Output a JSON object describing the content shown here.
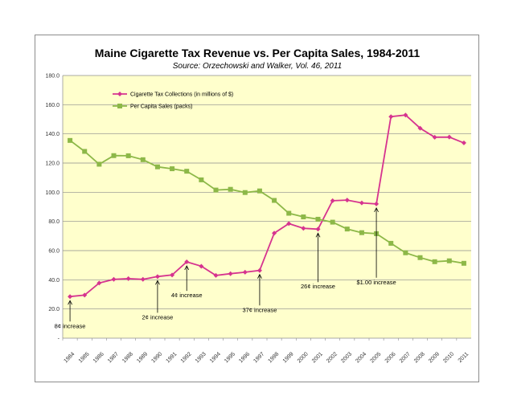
{
  "chart_data": {
    "type": "line",
    "title": "Maine Cigarette Tax Revenue vs. Per Capita Sales, 1984-2011",
    "subtitle": "Source: Orzechowski and Walker, Vol. 46, 2011",
    "xlabel": "",
    "ylabel": "",
    "ylim": [
      0,
      180
    ],
    "y_ticks": [
      "-",
      "20.0",
      "40.0",
      "60.0",
      "80.0",
      "100.0",
      "120.0",
      "140.0",
      "160.0",
      "180.0"
    ],
    "y_tick_values": [
      0,
      20,
      40,
      60,
      80,
      100,
      120,
      140,
      160,
      180
    ],
    "grid": true,
    "legend_position": "top-left",
    "plot_background": "#ffffcc",
    "categories": [
      "1984",
      "1985",
      "1986",
      "1987",
      "1988",
      "1989",
      "1990",
      "1991",
      "1992",
      "1993",
      "1994",
      "1995",
      "1996",
      "1997",
      "1998",
      "1999",
      "2000",
      "2001",
      "2002",
      "2003",
      "2004",
      "2005",
      "2006",
      "2007",
      "2008",
      "2009",
      "2010",
      "2011"
    ],
    "series": [
      {
        "name": "Cigarette Tax Collections (in millions of $)",
        "color": "#d6338f",
        "marker": "diamond",
        "values": [
          28.5,
          29.5,
          37.8,
          40.3,
          40.8,
          40.3,
          42.2,
          43.3,
          52.3,
          49.3,
          43.0,
          44.2,
          45.2,
          46.4,
          72.0,
          78.5,
          75.3,
          74.7,
          94.2,
          94.6,
          92.7,
          92.0,
          151.8,
          152.9,
          143.9,
          137.7,
          137.8,
          133.8
        ]
      },
      {
        "name": "Per Capita Sales (packs)",
        "color": "#8db848",
        "marker": "square",
        "values": [
          135.5,
          128.0,
          119.2,
          125.1,
          125.0,
          122.3,
          117.4,
          116.1,
          114.4,
          108.5,
          101.5,
          102.0,
          99.8,
          100.9,
          94.4,
          85.6,
          83.1,
          81.5,
          79.5,
          74.8,
          72.3,
          71.6,
          65.0,
          58.5,
          55.2,
          52.4,
          53.0,
          51.3
        ]
      }
    ],
    "annotations": [
      {
        "text": "8¢ increase",
        "year": "1984",
        "label_y": 7
      },
      {
        "text": "2¢ increase",
        "year": "1990",
        "label_y": 13
      },
      {
        "text": "4¢ increase",
        "year": "1992",
        "label_y": 28
      },
      {
        "text": "37¢ increase",
        "year": "1997",
        "label_y": 18
      },
      {
        "text": "26¢ increase",
        "year": "2001",
        "label_y": 34
      },
      {
        "text": "$1.00 increase",
        "year": "2005",
        "label_y": 37
      }
    ]
  }
}
